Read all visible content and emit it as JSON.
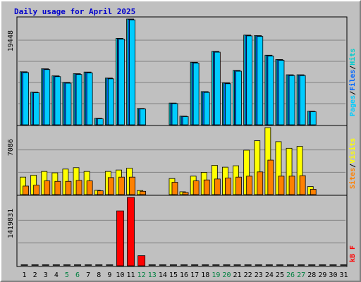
{
  "title": "Daily usage for April 2025",
  "colors": {
    "background": "#c0c0c0",
    "panel": "#c0c0c0",
    "grid": "#808080",
    "hits": "#00cccc",
    "files": "#0066ff",
    "pages": "#00ccff",
    "visits": "#ffff00",
    "sites": "#ff8000",
    "kbytes": "#ff0000",
    "weekday_label": "#000000",
    "weekend_label": "#008040",
    "title": "#0000cc"
  },
  "labels": {
    "panel1": {
      "pages": "Pages",
      "files": "Files",
      "hits": "Hits",
      "sep": "/"
    },
    "panel2": {
      "sites": "Sites",
      "visits": "Visits",
      "sep": "/"
    },
    "panel3": {
      "kbytes": "kB F"
    }
  },
  "chart_data": {
    "type": "bar",
    "title": "Daily usage for April 2025",
    "categories": [
      "1",
      "2",
      "3",
      "4",
      "5",
      "6",
      "7",
      "8",
      "9",
      "10",
      "11",
      "12",
      "13",
      "14",
      "15",
      "16",
      "17",
      "18",
      "19",
      "20",
      "21",
      "22",
      "23",
      "24",
      "25",
      "26",
      "27",
      "28",
      "29",
      "30",
      "31"
    ],
    "weekend_days": [
      5,
      6,
      12,
      13,
      19,
      20,
      26,
      27
    ],
    "panels": [
      {
        "name": "hits-files-pages",
        "max_label": "19448",
        "ylim": [
          0,
          19448
        ],
        "series": [
          {
            "name": "Hits",
            "color": "#00cccc",
            "values": [
              9750,
              6000,
              10300,
              9000,
              7800,
              9400,
              9700,
              1200,
              8600,
              15900,
              19448,
              3000,
              0,
              0,
              4000,
              1600,
              11500,
              6100,
              13500,
              7700,
              10000,
              16500,
              16400,
              12800,
              12000,
              9200,
              9200,
              2500,
              0,
              0,
              0
            ]
          },
          {
            "name": "Files",
            "color": "#0066ff",
            "values": [
              9700,
              5950,
              10250,
              8950,
              7750,
              9350,
              9650,
              1150,
              8550,
              15850,
              19400,
              2950,
              0,
              0,
              3950,
              1550,
              11450,
              6050,
              13450,
              7650,
              9950,
              16450,
              16350,
              12750,
              11950,
              9150,
              9150,
              2450,
              0,
              0,
              0
            ]
          },
          {
            "name": "Pages",
            "color": "#00ccff",
            "values": [
              9600,
              5900,
              10150,
              8850,
              7650,
              9250,
              9550,
              1100,
              8450,
              15750,
              19300,
              2900,
              0,
              0,
              3900,
              1500,
              11350,
              5950,
              13350,
              7550,
              9850,
              16350,
              16250,
              12650,
              11850,
              9050,
              9050,
              2400,
              0,
              0,
              0
            ]
          }
        ]
      },
      {
        "name": "visits-sites",
        "max_label": "7086",
        "ylim": [
          0,
          7086
        ],
        "series": [
          {
            "name": "Visits",
            "color": "#ffff00",
            "values": [
              1850,
              2050,
              2450,
              2300,
              2700,
              2850,
              2450,
              450,
              2450,
              2600,
              2800,
              430,
              0,
              0,
              1700,
              300,
              1950,
              2350,
              3100,
              2900,
              3050,
              4700,
              5700,
              7086,
              5600,
              4900,
              5100,
              850,
              0,
              0,
              0
            ]
          },
          {
            "name": "Sites",
            "color": "#ff8000",
            "values": [
              900,
              1000,
              1450,
              1400,
              1400,
              1500,
              1450,
              400,
              1800,
              1850,
              1850,
              350,
              0,
              0,
              1300,
              220,
              1450,
              1550,
              1650,
              1750,
              1850,
              1950,
              2400,
              3650,
              1950,
              1950,
              2000,
              560,
              0,
              0,
              0
            ]
          }
        ]
      },
      {
        "name": "kbytes",
        "max_label": "1419831",
        "ylim": [
          0,
          1419831
        ],
        "series": [
          {
            "name": "KBytes",
            "color": "#ff0000",
            "values": [
              0,
              0,
              0,
              0,
              0,
              0,
              0,
              0,
              0,
              1140000,
              1419831,
              210000,
              0,
              0,
              0,
              0,
              0,
              0,
              0,
              0,
              0,
              0,
              0,
              0,
              0,
              0,
              0,
              0,
              0,
              0,
              0
            ]
          }
        ]
      }
    ]
  }
}
